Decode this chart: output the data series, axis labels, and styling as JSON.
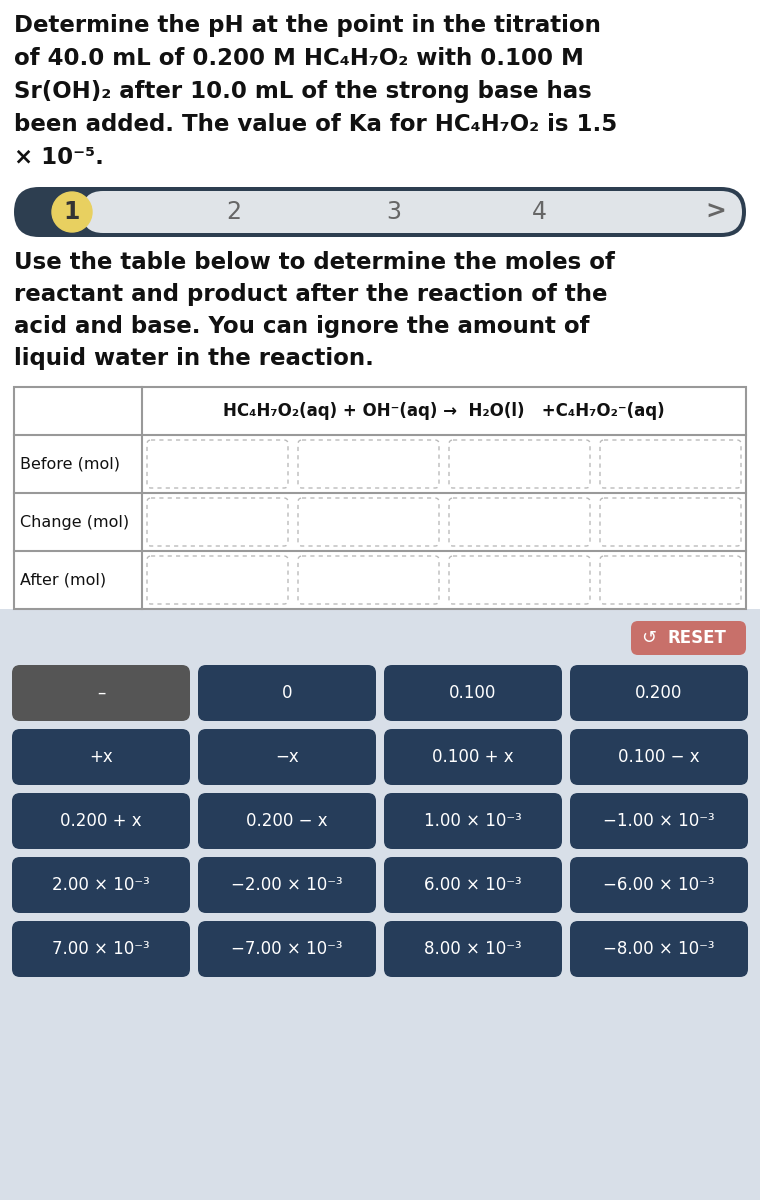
{
  "bg_color": "#ffffff",
  "bottom_bg_color": "#d8dfe8",
  "nav_bg_color": "#2d3e50",
  "nav_pill_color": "#e8d060",
  "nav_inner_color": "#e0e4e8",
  "reset_btn_color": "#c8706a",
  "button_color": "#263d5a",
  "button_dark_color": "#555555",
  "button_text_color": "#ffffff",
  "title_lines": [
    "Determine the pH at the point in the titration",
    "of 40.0 mL of 0.200 M HC₄H₇O₂ with 0.100 M",
    "Sr(OH)₂ after 10.0 mL of the strong base has",
    "been added. The value of Ka for HC₄H₇O₂ is 1.5",
    "× 10⁻⁵."
  ],
  "subtitle_lines": [
    "Use the table below to determine the moles of",
    "reactant and product after the reaction of the",
    "acid and base. You can ignore the amount of",
    "liquid water in the reaction."
  ],
  "equation_text": "HC₄H₇O₂(aq) + OH⁻(aq) →  H₂O(l)   +C₄H₇O₂⁻(aq)",
  "row_labels": [
    "Before (mol)",
    "Change (mol)",
    "After (mol)"
  ],
  "reset_text": "RESET",
  "buttons": [
    [
      "–",
      "0",
      "0.100",
      "0.200"
    ],
    [
      "+x",
      "−x",
      "0.100 + x",
      "0.100 − x"
    ],
    [
      "0.200 + x",
      "0.200 − x",
      "1.00 × 10⁻³",
      "−1.00 × 10⁻³"
    ],
    [
      "2.00 × 10⁻³",
      "−2.00 × 10⁻³",
      "6.00 × 10⁻³",
      "−6.00 × 10⁻³"
    ],
    [
      "7.00 × 10⁻³",
      "−7.00 × 10⁻³",
      "8.00 × 10⁻³",
      "−8.00 × 10⁻³"
    ]
  ]
}
